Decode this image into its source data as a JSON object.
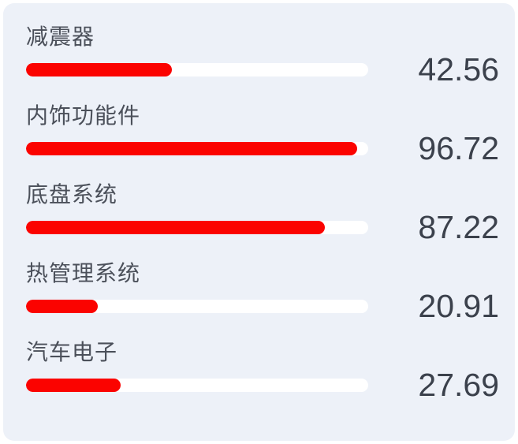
{
  "chart_data": {
    "type": "bar",
    "orientation": "horizontal",
    "title": "",
    "categories": [
      "减震器",
      "内饰功能件",
      "底盘系统",
      "热管理系统",
      "汽车电子"
    ],
    "values": [
      42.56,
      96.72,
      87.22,
      20.91,
      27.69
    ],
    "value_labels": [
      "42.56",
      "96.72",
      "87.22",
      "20.91",
      "27.69"
    ],
    "xlim": [
      0,
      100
    ],
    "grid": false,
    "legend": false,
    "colors": {
      "bar_fill": "#fb0300",
      "bar_track": "#ffffff",
      "background": "#edf1f8",
      "label_text": "#4b505a",
      "value_text": "#3b414c"
    }
  }
}
